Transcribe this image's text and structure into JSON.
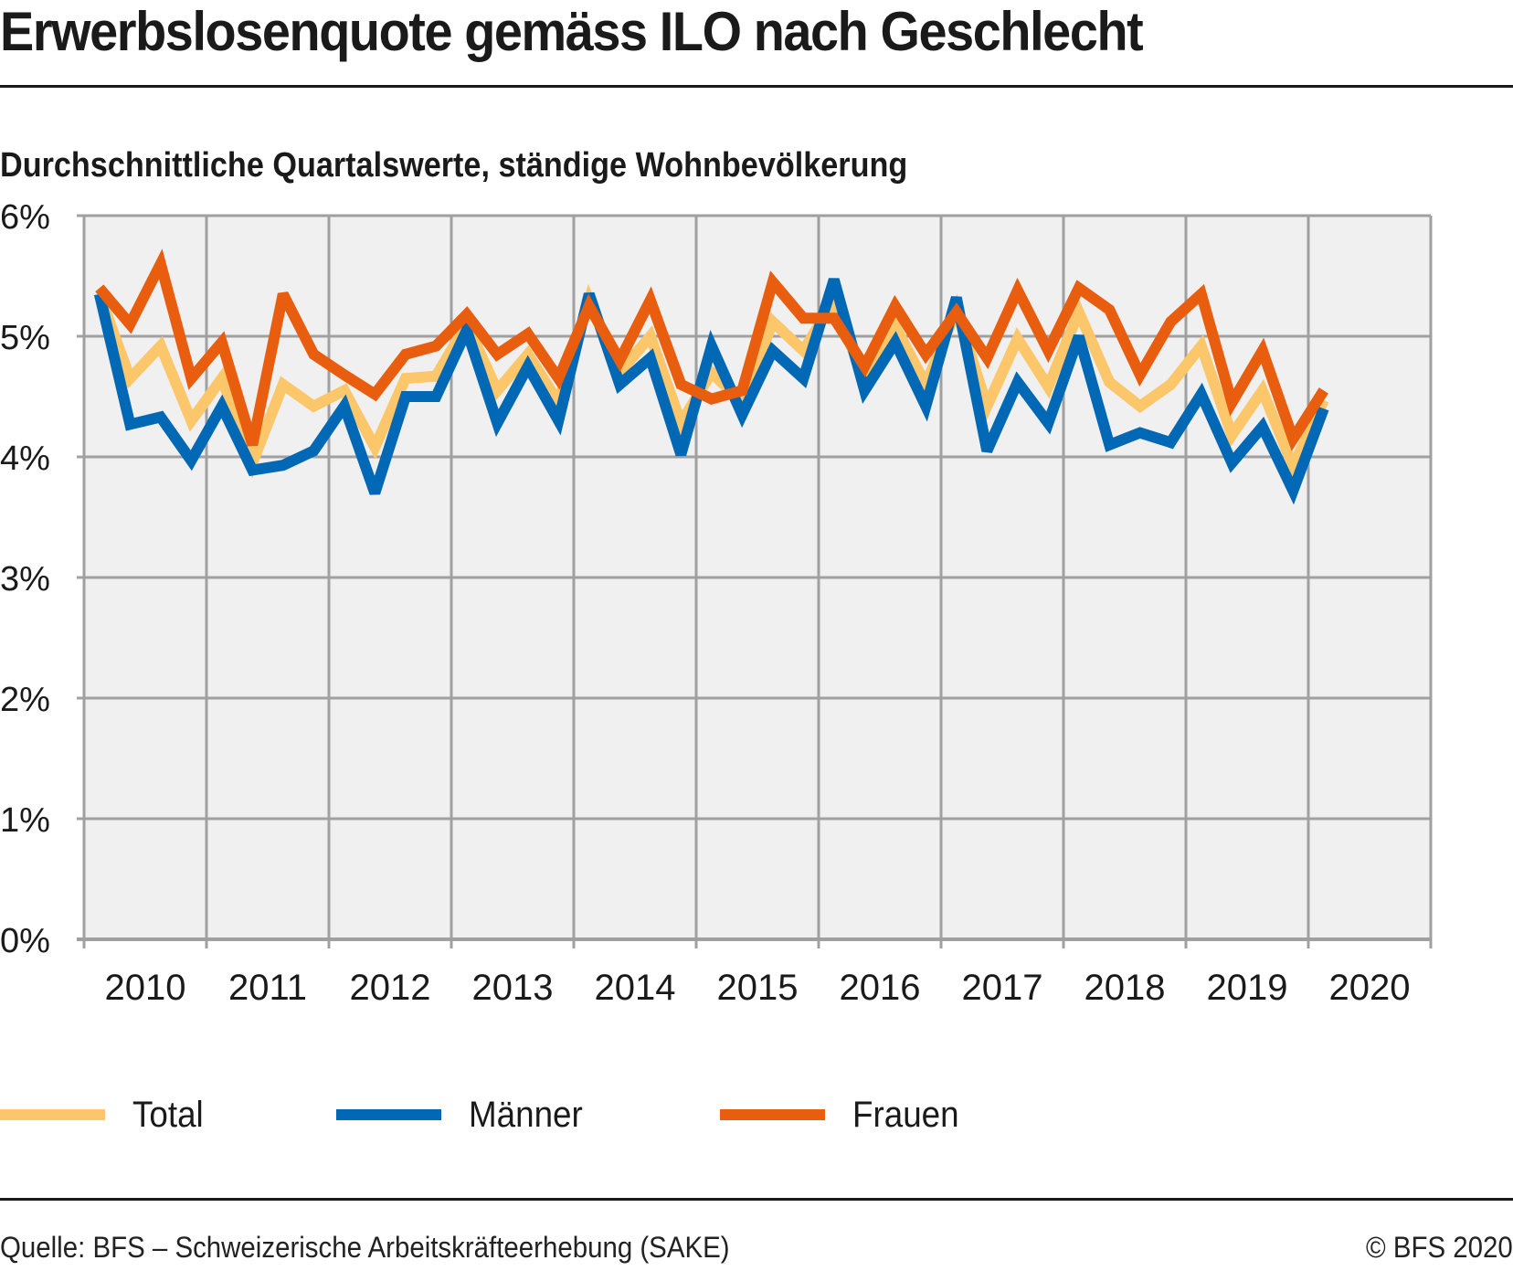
{
  "header": {
    "title": "Erwerbslosenquote gemäss ILO nach Geschlecht",
    "subtitle": "Durchschnittliche Quartalswerte, ständige Wohnbevölkerung"
  },
  "footer": {
    "source": "Quelle: BFS – Schweizerische Arbeitskräfteerhebung (SAKE)",
    "copyright": "© BFS 2020"
  },
  "chart_data": {
    "type": "line",
    "title": "Erwerbslosenquote gemäss ILO nach Geschlecht",
    "subtitle": "Durchschnittliche Quartalswerte, ständige Wohnbevölkerung",
    "xlabel": "",
    "ylabel": "",
    "x_unit": "quarter",
    "x_start": "2010 Q1",
    "x_end": "2020 Q1",
    "x_tick_labels": [
      "2010",
      "2011",
      "2012",
      "2013",
      "2014",
      "2015",
      "2016",
      "2017",
      "2018",
      "2019",
      "2020"
    ],
    "y_tick_labels": [
      "0%",
      "1%",
      "2%",
      "3%",
      "4%",
      "5%",
      "6%"
    ],
    "y_ticks": [
      0,
      1,
      2,
      3,
      4,
      5,
      6
    ],
    "ylim": [
      0,
      6
    ],
    "xlim_years": [
      2010,
      2021
    ],
    "grid": true,
    "legend_position": "bottom",
    "series": [
      {
        "name": "Total",
        "color": "#FCC66A",
        "values": [
          5.35,
          4.65,
          4.92,
          4.3,
          4.65,
          3.95,
          4.6,
          4.42,
          4.55,
          4.08,
          4.65,
          4.67,
          5.1,
          4.55,
          4.85,
          4.45,
          5.3,
          4.7,
          5.0,
          4.28,
          4.7,
          4.45,
          5.12,
          4.88,
          5.3,
          4.62,
          5.08,
          4.6,
          5.22,
          4.42,
          4.98,
          4.58,
          5.2,
          4.62,
          4.42,
          4.6,
          4.92,
          4.18,
          4.55,
          3.92,
          4.47
        ]
      },
      {
        "name": "Männer",
        "color": "#0068B4",
        "values": [
          5.35,
          4.27,
          4.33,
          3.97,
          4.42,
          3.89,
          3.93,
          4.05,
          4.42,
          3.7,
          4.5,
          4.5,
          5.05,
          4.28,
          4.75,
          4.3,
          5.35,
          4.6,
          4.82,
          4.02,
          4.92,
          4.35,
          4.88,
          4.65,
          5.47,
          4.55,
          4.95,
          4.42,
          5.32,
          4.05,
          4.62,
          4.28,
          5.0,
          4.1,
          4.2,
          4.12,
          4.52,
          3.95,
          4.25,
          3.72,
          4.4
        ]
      },
      {
        "name": "Frauen",
        "color": "#E95D0F",
        "values": [
          5.4,
          5.1,
          5.6,
          4.65,
          4.95,
          4.1,
          5.35,
          4.85,
          4.68,
          4.52,
          4.85,
          4.92,
          5.18,
          4.85,
          5.02,
          4.65,
          5.25,
          4.8,
          5.3,
          4.6,
          4.48,
          4.55,
          5.45,
          5.15,
          5.15,
          4.75,
          5.25,
          4.85,
          5.2,
          4.82,
          5.38,
          4.88,
          5.4,
          5.22,
          4.68,
          5.12,
          5.35,
          4.45,
          4.88,
          4.15,
          4.55
        ]
      }
    ]
  },
  "style": {
    "plot_background": "#F0F0F0",
    "grid_color": "#A0A0A0"
  }
}
